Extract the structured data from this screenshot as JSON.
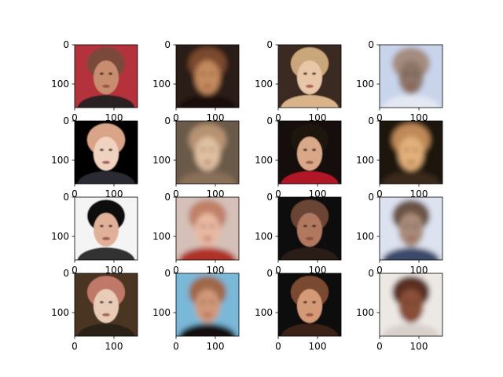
{
  "chart_data": {
    "type": "image-grid",
    "title": "",
    "rows": 4,
    "cols": 4,
    "axes": {
      "x_ticks": [
        0,
        100
      ],
      "y_ticks": [
        0,
        100
      ],
      "extent": [
        0,
        160
      ]
    },
    "panels": [
      {
        "row": 0,
        "col": 0,
        "content": "face-original",
        "palette": [
          "#b4303a",
          "#7a4a3a",
          "#c88c6e",
          "#2b2020"
        ]
      },
      {
        "row": 0,
        "col": 1,
        "content": "face-generated",
        "palette": [
          "#2a1a12",
          "#7a4a2e",
          "#c48a5e",
          "#1a100c"
        ]
      },
      {
        "row": 0,
        "col": 2,
        "content": "face-original",
        "palette": [
          "#3a2a20",
          "#c9a77a",
          "#e8c6a8",
          "#d9b48a"
        ]
      },
      {
        "row": 0,
        "col": 3,
        "content": "face-generated",
        "palette": [
          "#c8d4ea",
          "#a58c80",
          "#8c7466",
          "#e4e8f2"
        ]
      },
      {
        "row": 1,
        "col": 0,
        "content": "face-original",
        "palette": [
          "#050505",
          "#d9a488",
          "#efd2c0",
          "#2a2a30"
        ]
      },
      {
        "row": 1,
        "col": 1,
        "content": "face-generated",
        "palette": [
          "#6a5a48",
          "#b69272",
          "#e0c0a0",
          "#8a7058"
        ]
      },
      {
        "row": 1,
        "col": 2,
        "content": "face-original",
        "palette": [
          "#140c08",
          "#1c120c",
          "#d8a888",
          "#b01828"
        ]
      },
      {
        "row": 1,
        "col": 3,
        "content": "face-generated",
        "palette": [
          "#1a120c",
          "#c08a58",
          "#e2b07a",
          "#3a2a1c"
        ]
      },
      {
        "row": 2,
        "col": 0,
        "content": "face-original",
        "palette": [
          "#f4f4f4",
          "#101010",
          "#e0b098",
          "#303030"
        ]
      },
      {
        "row": 2,
        "col": 1,
        "content": "face-generated",
        "palette": [
          "#d4c0b8",
          "#c08068",
          "#e8b8a0",
          "#b03028"
        ]
      },
      {
        "row": 2,
        "col": 2,
        "content": "face-original",
        "palette": [
          "#0c0c10",
          "#6a4434",
          "#b0785e",
          "#2a1c18"
        ]
      },
      {
        "row": 2,
        "col": 3,
        "content": "face-generated",
        "palette": [
          "#dce2f0",
          "#6a5244",
          "#a88a78",
          "#3a4a6a"
        ]
      },
      {
        "row": 3,
        "col": 0,
        "content": "face-original",
        "palette": [
          "#4a3620",
          "#c07868",
          "#e8ccb8",
          "#2a2018"
        ]
      },
      {
        "row": 3,
        "col": 1,
        "content": "face-generated",
        "palette": [
          "#7ab8d8",
          "#a06848",
          "#d09878",
          "#181010"
        ]
      },
      {
        "row": 3,
        "col": 2,
        "content": "face-original",
        "palette": [
          "#0a0808",
          "#7a4a30",
          "#d49a78",
          "#3a2418"
        ]
      },
      {
        "row": 3,
        "col": 3,
        "content": "face-generated",
        "palette": [
          "#ece8e4",
          "#5a2e20",
          "#8a5038",
          "#d8d0cc"
        ]
      }
    ]
  }
}
